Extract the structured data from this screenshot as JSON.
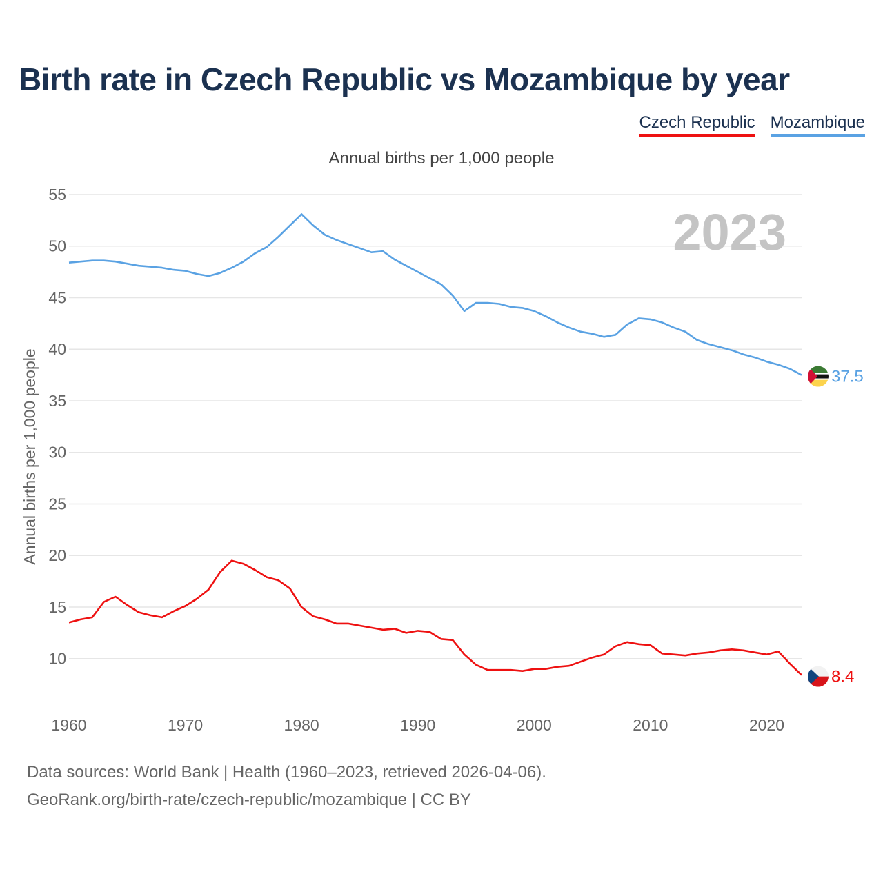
{
  "title": "Birth rate in Czech Republic vs Mozambique by year",
  "legend": [
    {
      "label": "Czech Republic",
      "color": "#ee1111"
    },
    {
      "label": "Mozambique",
      "color": "#5aa2e3"
    }
  ],
  "footer": {
    "line1": "Data sources: World Bank | Health (1960–2023, retrieved 2026-04-06).",
    "line2": "GeoRank.org/birth-rate/czech-republic/mozambique | CC BY"
  },
  "chart_data": {
    "type": "line",
    "title": "Annual births per 1,000 people",
    "ylabel": "Annual births per 1,000 people",
    "xlabel": "",
    "watermark_year": "2023",
    "xlim": [
      1960,
      2023
    ],
    "ylim": [
      5.5,
      55
    ],
    "yticks": [
      10,
      15,
      20,
      25,
      30,
      35,
      40,
      45,
      50,
      55
    ],
    "xticks": [
      1960,
      1970,
      1980,
      1990,
      2000,
      2010,
      2020
    ],
    "grid": true,
    "legend_position": "top-right",
    "x": [
      1960,
      1961,
      1962,
      1963,
      1964,
      1965,
      1966,
      1967,
      1968,
      1969,
      1970,
      1971,
      1972,
      1973,
      1974,
      1975,
      1976,
      1977,
      1978,
      1979,
      1980,
      1981,
      1982,
      1983,
      1984,
      1985,
      1986,
      1987,
      1988,
      1989,
      1990,
      1991,
      1992,
      1993,
      1994,
      1995,
      1996,
      1997,
      1998,
      1999,
      2000,
      2001,
      2002,
      2003,
      2004,
      2005,
      2006,
      2007,
      2008,
      2009,
      2010,
      2011,
      2012,
      2013,
      2014,
      2015,
      2016,
      2017,
      2018,
      2019,
      2020,
      2021,
      2022,
      2023
    ],
    "series": [
      {
        "name": "Czech Republic",
        "color": "#ee1111",
        "end_label": "8.4",
        "flag": "czech-flag",
        "values": [
          13.5,
          13.8,
          14.0,
          15.5,
          16.0,
          15.2,
          14.5,
          14.2,
          14.0,
          14.6,
          15.1,
          15.8,
          16.7,
          18.4,
          19.5,
          19.2,
          18.6,
          17.9,
          17.6,
          16.8,
          15.0,
          14.1,
          13.8,
          13.4,
          13.4,
          13.2,
          13.0,
          12.8,
          12.9,
          12.5,
          12.7,
          12.6,
          11.9,
          11.8,
          10.4,
          9.4,
          8.9,
          8.9,
          8.9,
          8.8,
          9.0,
          9.0,
          9.2,
          9.3,
          9.7,
          10.1,
          10.4,
          11.2,
          11.6,
          11.4,
          11.3,
          10.5,
          10.4,
          10.3,
          10.5,
          10.6,
          10.8,
          10.9,
          10.8,
          10.6,
          10.4,
          10.7,
          9.5,
          8.4
        ]
      },
      {
        "name": "Mozambique",
        "color": "#5aa2e3",
        "end_label": "37.5",
        "flag": "mozambique-flag",
        "values": [
          48.4,
          48.5,
          48.6,
          48.6,
          48.5,
          48.3,
          48.1,
          48.0,
          47.9,
          47.7,
          47.6,
          47.3,
          47.1,
          47.4,
          47.9,
          48.5,
          49.3,
          49.9,
          50.9,
          52.0,
          53.1,
          52.0,
          51.1,
          50.6,
          50.2,
          49.8,
          49.4,
          49.5,
          48.7,
          48.1,
          47.5,
          46.9,
          46.3,
          45.2,
          43.7,
          44.5,
          44.5,
          44.4,
          44.1,
          44.0,
          43.7,
          43.2,
          42.6,
          42.1,
          41.7,
          41.5,
          41.2,
          41.4,
          42.4,
          43.0,
          42.9,
          42.6,
          42.1,
          41.7,
          40.9,
          40.5,
          40.2,
          39.9,
          39.5,
          39.2,
          38.8,
          38.5,
          38.1,
          37.5
        ]
      }
    ]
  }
}
